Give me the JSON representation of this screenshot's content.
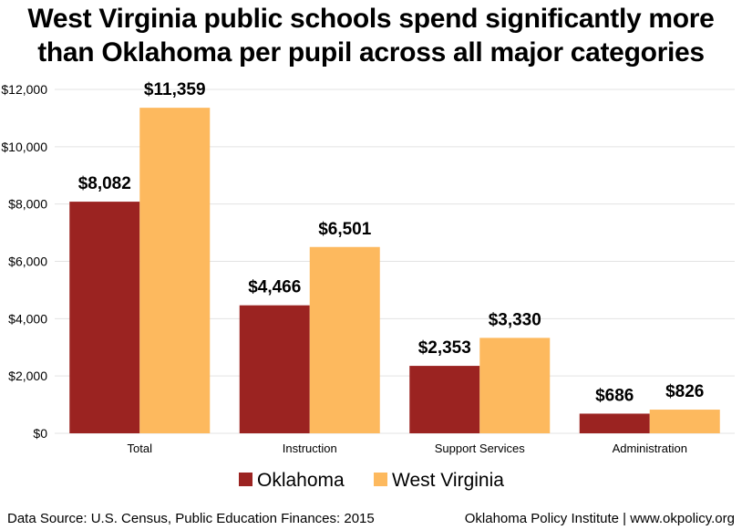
{
  "title_lines": [
    "West Virginia public schools spend significantly more",
    "than Oklahoma per pupil across all major categories"
  ],
  "footer": {
    "source": "Data Source: U.S. Census, Public Education Finances: 2015",
    "credit": "Oklahoma Policy Institute | www.okpolicy.org"
  },
  "colors": {
    "oklahoma": "#9b2321",
    "west_virginia": "#fdb95e",
    "grid": "#e3e3e3"
  },
  "chart_data": {
    "type": "bar",
    "title": "West Virginia public schools spend significantly more than Oklahoma per pupil across all major categories",
    "categories": [
      "Total",
      "Instruction",
      "Support Services",
      "Administration"
    ],
    "series": [
      {
        "name": "Oklahoma",
        "values": [
          8082,
          4466,
          2353,
          686
        ],
        "labels": [
          "$8,082",
          "$4,466",
          "$2,353",
          "$686"
        ]
      },
      {
        "name": "West Virginia",
        "values": [
          11359,
          6501,
          3330,
          826
        ],
        "labels": [
          "$11,359",
          "$6,501",
          "$3,330",
          "$826"
        ]
      }
    ],
    "ylim": [
      0,
      12000
    ],
    "yticks": [
      0,
      2000,
      4000,
      6000,
      8000,
      10000,
      12000
    ],
    "ytick_labels": [
      "$0",
      "$2,000",
      "$4,000",
      "$6,000",
      "$8,000",
      "$10,000",
      "$12,000"
    ],
    "grid": true,
    "legend_position": "bottom"
  }
}
